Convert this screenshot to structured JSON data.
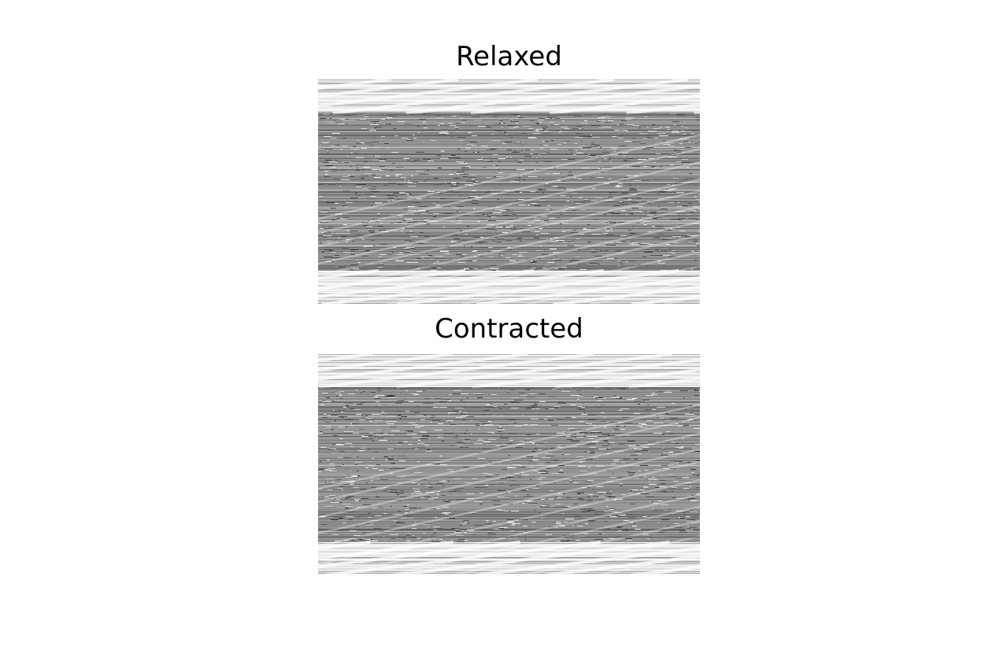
{
  "panels": [
    {
      "title": "Relaxed"
    },
    {
      "title": "Contracted"
    }
  ],
  "colors": {
    "background": "#ffffff",
    "band_light": "#e4e4e4",
    "band_dark": "#8c8c8c",
    "stripe_white": "#ffffff",
    "stripe_black": "#2a2a2a"
  }
}
